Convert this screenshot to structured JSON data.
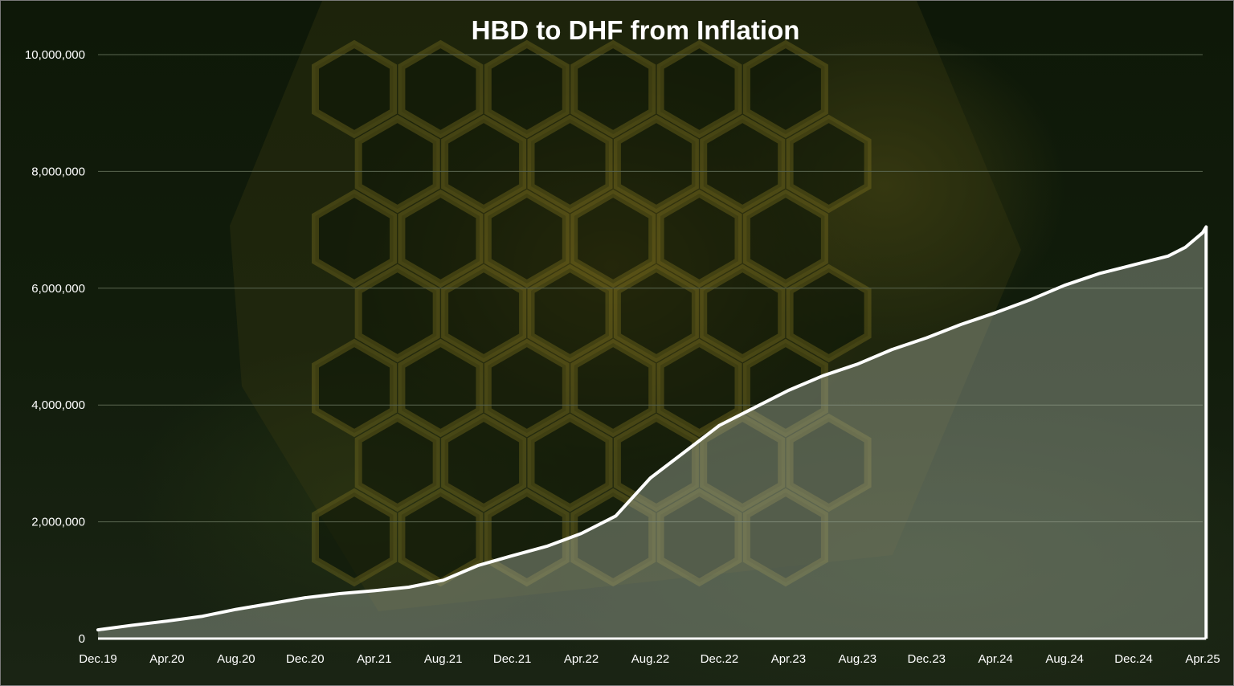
{
  "chart_data": {
    "type": "area",
    "title": "HBD to DHF from Inflation",
    "xlabel": "",
    "ylabel": "",
    "x_tick_labels": [
      "Dec.19",
      "Apr.20",
      "Aug.20",
      "Dec.20",
      "Apr.21",
      "Aug.21",
      "Dec.21",
      "Apr.22",
      "Aug.22",
      "Dec.22",
      "Apr.23",
      "Aug.23",
      "Dec.23",
      "Apr.24",
      "Aug.24",
      "Dec.24",
      "Apr.25"
    ],
    "y_tick_labels": [
      "0",
      "2,000,000",
      "4,000,000",
      "6,000,000",
      "8,000,000",
      "10,000,000"
    ],
    "ylim": [
      0,
      10000000
    ],
    "grid": true,
    "legend": "none",
    "series": [
      {
        "values": [
          150000,
          230000,
          300000,
          380000,
          500000,
          600000,
          700000,
          770000,
          820000,
          880000,
          1000000,
          1250000,
          1420000,
          1580000,
          1800000,
          2100000,
          2750000,
          3200000,
          3650000,
          3950000,
          4250000,
          4500000,
          4700000,
          4950000,
          5150000,
          5380000,
          5580000,
          5800000,
          6050000,
          6250000,
          6400000,
          6550000,
          6700000,
          6950000,
          7050000
        ],
        "x_index": [
          0,
          0.5,
          1,
          1.5,
          2,
          2.5,
          3,
          3.5,
          4,
          4.5,
          5,
          5.5,
          6,
          6.5,
          7,
          7.5,
          8,
          8.5,
          9,
          9.5,
          10,
          10.5,
          11,
          11.5,
          12,
          12.5,
          13,
          13.5,
          14,
          14.5,
          15,
          15.5,
          15.75,
          16,
          16.05
        ]
      }
    ],
    "colors": {
      "line": "#ffffff",
      "fill": "#a9b2a4",
      "grid": "#5a6650",
      "text": "#ffffff"
    }
  }
}
